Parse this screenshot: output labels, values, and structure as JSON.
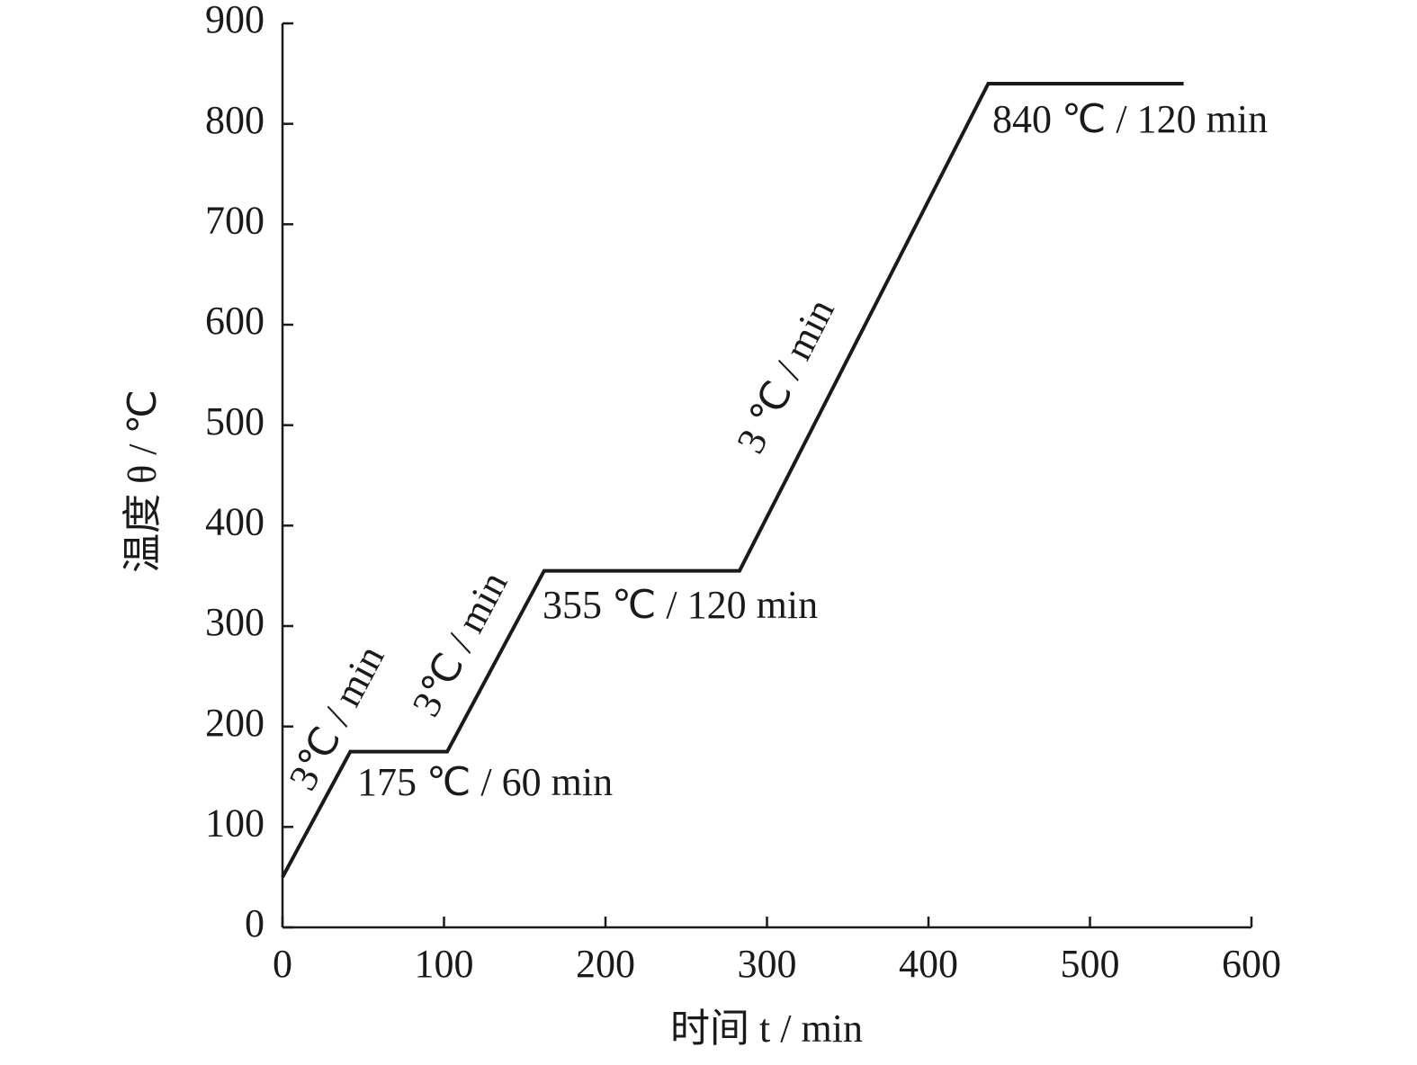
{
  "chart_data": {
    "type": "line",
    "x_label": "时间 t / min",
    "y_label": "温度 θ / ℃",
    "x": [
      0,
      42,
      102,
      162,
      283,
      437,
      558
    ],
    "values": [
      50,
      175,
      175,
      355,
      355,
      840,
      840
    ],
    "color": "#1a1a1a",
    "xlim": [
      0,
      600
    ],
    "xticks": [
      0,
      100,
      200,
      300,
      400,
      500,
      600
    ],
    "ylim": [
      0,
      900
    ],
    "yticks": [
      0,
      100,
      200,
      300,
      400,
      500,
      600,
      700,
      800,
      900
    ],
    "grid": false,
    "annotations": [
      "3℃ / min",
      "3℃ / min",
      "3 ℃ / min",
      "175 ℃ / 60 min",
      "355 ℃ / 120 min",
      "840 ℃ / 120 min"
    ]
  }
}
